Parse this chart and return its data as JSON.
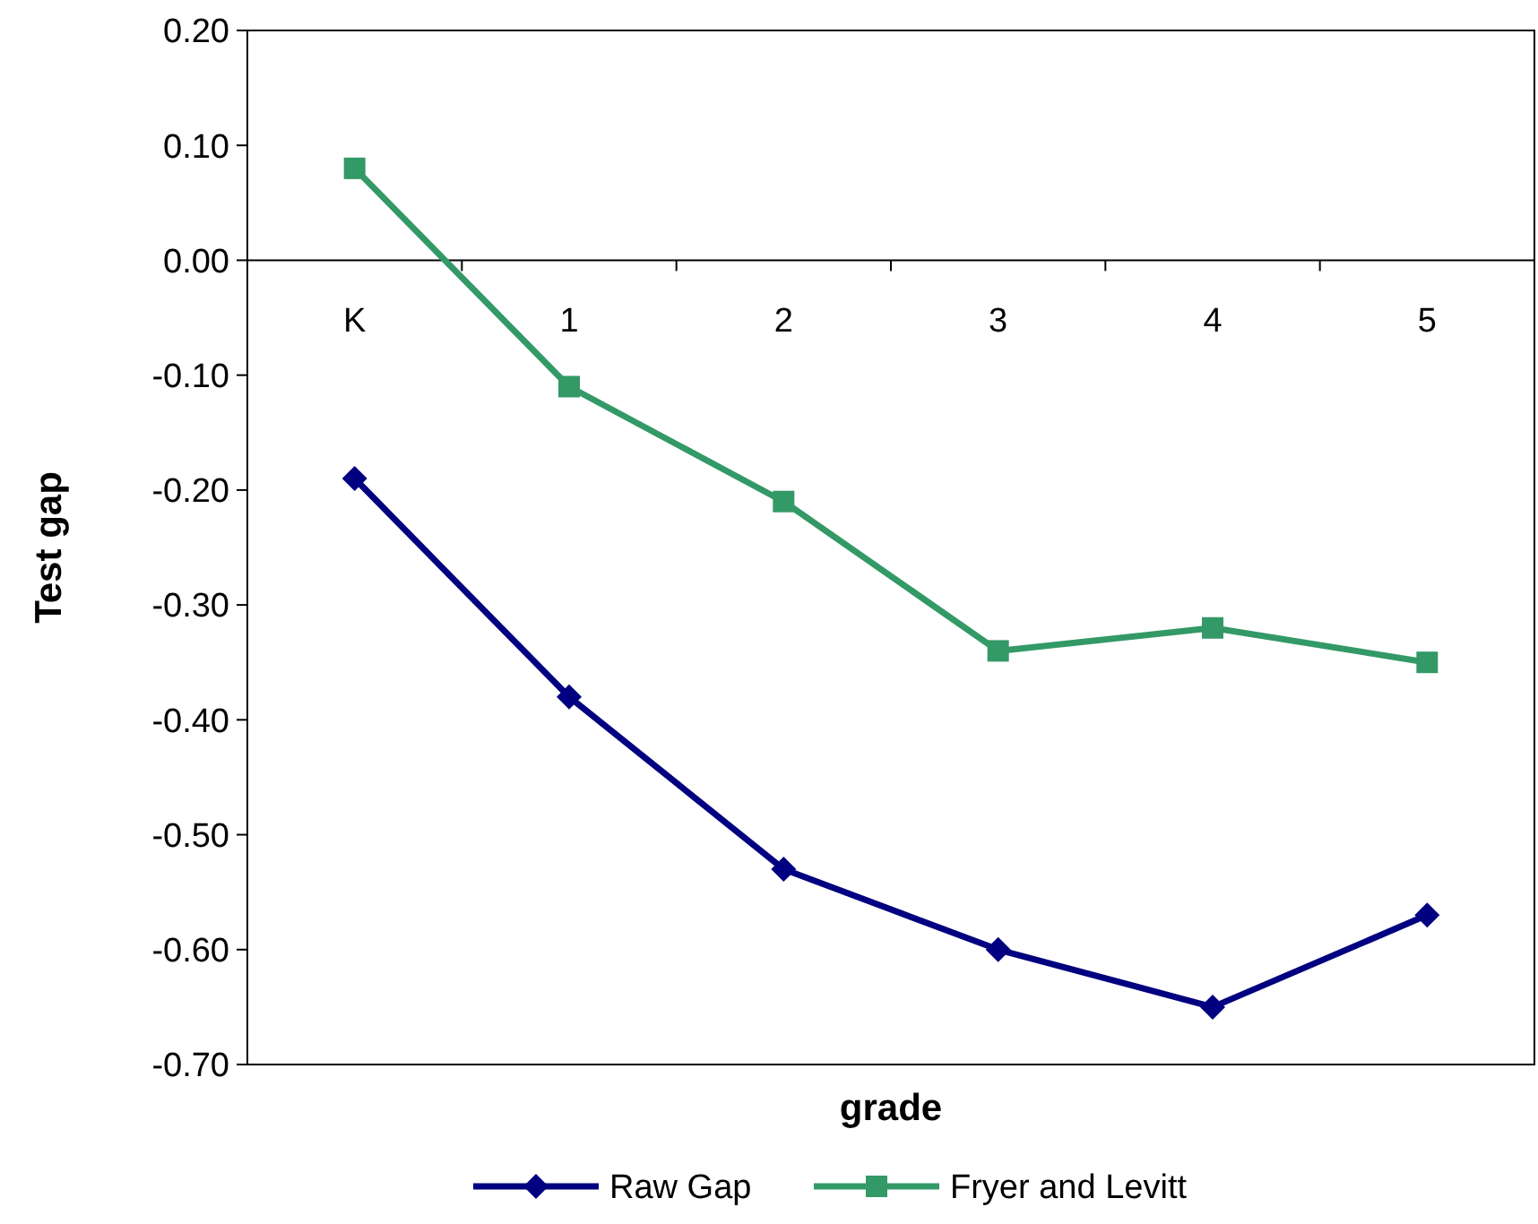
{
  "chart_data": {
    "type": "line",
    "xlabel": "grade",
    "ylabel": "Test gap",
    "categories": [
      "K",
      "1",
      "2",
      "3",
      "4",
      "5"
    ],
    "ylim": [
      -0.7,
      0.2
    ],
    "yticks": [
      {
        "value": 0.2,
        "label": "0.20"
      },
      {
        "value": 0.1,
        "label": "0.10"
      },
      {
        "value": 0,
        "label": "0.00"
      },
      {
        "value": -0.1,
        "label": "-0.10"
      },
      {
        "value": -0.2,
        "label": "-0.20"
      },
      {
        "value": -0.3,
        "label": "-0.30"
      },
      {
        "value": -0.4,
        "label": "-0.40"
      },
      {
        "value": -0.5,
        "label": "-0.50"
      },
      {
        "value": -0.6,
        "label": "-0.60"
      },
      {
        "value": -0.7,
        "label": "-0.70"
      }
    ],
    "grid": false,
    "legend": "bottom",
    "line_style": "solid",
    "series": [
      {
        "name": "Raw  Gap",
        "color": "#000080",
        "marker": "diamond",
        "values": [
          -0.19,
          -0.38,
          -0.53,
          -0.6,
          -0.65,
          -0.57
        ]
      },
      {
        "name": "Fryer and Levitt",
        "color": "#339966",
        "marker": "square",
        "values": [
          0.08,
          -0.11,
          -0.21,
          -0.34,
          -0.32,
          -0.35
        ]
      }
    ]
  }
}
